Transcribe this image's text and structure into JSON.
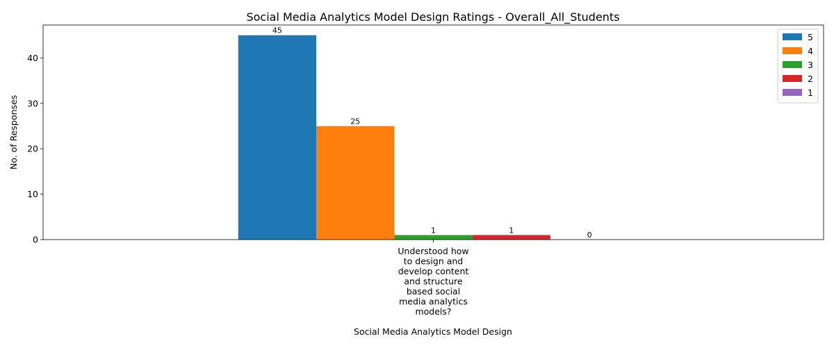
{
  "chart_data": {
    "type": "bar",
    "title": "Social Media Analytics Model Design Ratings - Overall_All_Students",
    "xlabel": "Social Media Analytics Model Design",
    "ylabel": "No. of Responses",
    "categories": [
      "Understood how to design and develop content and structure based social media analytics models?"
    ],
    "category_lines": [
      [
        "Understood how",
        "to design and",
        "develop content",
        "and structure",
        "based social",
        "media analytics",
        "models?"
      ]
    ],
    "series": [
      {
        "name": "5",
        "color": "#1f77b4",
        "values": [
          45
        ]
      },
      {
        "name": "4",
        "color": "#ff7f0e",
        "values": [
          25
        ]
      },
      {
        "name": "3",
        "color": "#2ca02c",
        "values": [
          1
        ]
      },
      {
        "name": "2",
        "color": "#d62728",
        "values": [
          1
        ]
      },
      {
        "name": "1",
        "color": "#9467bd",
        "values": [
          0
        ]
      }
    ],
    "ylim": [
      0,
      47.25
    ],
    "yticks": [
      0,
      10,
      20,
      30,
      40
    ],
    "legend_position": "top-right",
    "grid": false,
    "data_labels": true
  }
}
